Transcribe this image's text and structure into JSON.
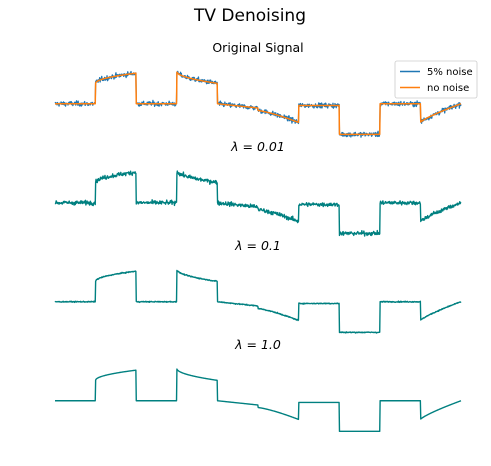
{
  "figure_title": "TV Denoising",
  "colors": {
    "noisy": "#1f77b4",
    "clean": "#ff7f0e",
    "denoised": "#008080",
    "legend_border": "#cccccc"
  },
  "chart_data": {
    "type": "line",
    "x_range": [
      0,
      1
    ],
    "y_range": [
      -0.45,
      0.55
    ],
    "axes_visible": false,
    "grid": false,
    "clean_signal": {
      "segments": [
        {
          "x": [
            0.0,
            0.1
          ],
          "y": [
            0.0,
            0.0
          ],
          "shape": "flat"
        },
        {
          "x": [
            0.1,
            0.2
          ],
          "y": [
            0.24,
            0.36
          ],
          "shape": "concave"
        },
        {
          "x": [
            0.2,
            0.3
          ],
          "y": [
            0.0,
            0.0
          ],
          "shape": "flat"
        },
        {
          "x": [
            0.3,
            0.4
          ],
          "y": [
            0.38,
            0.24
          ],
          "shape": "concave"
        },
        {
          "x": [
            0.4,
            0.5
          ],
          "y": [
            0.0,
            -0.05
          ],
          "shape": "gentle"
        },
        {
          "x": [
            0.5,
            0.6
          ],
          "y": [
            -0.08,
            -0.22
          ],
          "shape": "steep"
        },
        {
          "x": [
            0.6,
            0.7
          ],
          "y": [
            -0.02,
            -0.02
          ],
          "shape": "flat"
        },
        {
          "x": [
            0.7,
            0.8
          ],
          "y": [
            -0.36,
            -0.36
          ],
          "shape": "flat"
        },
        {
          "x": [
            0.8,
            0.9
          ],
          "y": [
            0.0,
            0.0
          ],
          "shape": "flat"
        },
        {
          "x": [
            0.9,
            1.0
          ],
          "y": [
            -0.22,
            0.0
          ],
          "shape": "rising"
        }
      ]
    },
    "panels": [
      {
        "title": "Original Signal",
        "legend_position": "upper right",
        "series": [
          {
            "name": "5% noise",
            "role": "noisy",
            "noise_std": 0.02
          },
          {
            "name": "no noise",
            "role": "clean",
            "noise_std": 0.0
          }
        ]
      },
      {
        "title": "λ = 0.01",
        "lambda": 0.01,
        "series": [
          {
            "role": "denoised",
            "residual_noise": 0.017
          }
        ]
      },
      {
        "title": "λ = 0.1",
        "lambda": 0.1,
        "series": [
          {
            "role": "denoised",
            "residual_noise": 0.004
          }
        ]
      },
      {
        "title": "λ = 1.0",
        "lambda": 1.0,
        "series": [
          {
            "role": "denoised",
            "residual_noise": 0.0
          }
        ]
      }
    ]
  }
}
